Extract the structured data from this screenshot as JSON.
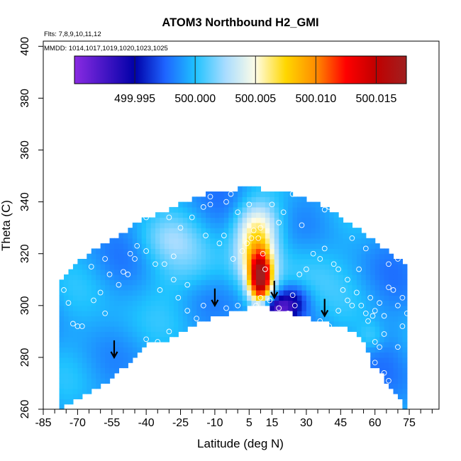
{
  "chart_data": {
    "type": "heatmap",
    "title": "ATOM3 Northbound H2_GMI",
    "annotations": {
      "flights": "Flts: 7,8,9,10,11,12",
      "dates": "MMDD: 1014,1017,1019,1020,1023,1025"
    },
    "xlabel": "Latitude (deg N)",
    "ylabel": "Theta (C)",
    "xlim": [
      -85,
      88
    ],
    "ylim": [
      260,
      402
    ],
    "xticks_labeled": [
      -85,
      -70,
      -55,
      -40,
      -25,
      -10,
      5,
      15,
      30,
      45,
      60,
      75
    ],
    "xticks_minor": [
      -80,
      -75,
      -65,
      -60,
      -50,
      -45,
      -35,
      -30,
      -20,
      -15,
      -5,
      0,
      10,
      20,
      25,
      35,
      40,
      50,
      55,
      65,
      70,
      80,
      85
    ],
    "yticks": [
      260,
      280,
      300,
      320,
      340,
      360,
      380,
      400
    ],
    "colorbar": {
      "ticks": [
        499.995,
        500.0,
        500.005,
        500.01,
        500.015
      ],
      "tick_labels": [
        "499.995",
        "500.000",
        "500.005",
        "500.010",
        "500.015"
      ],
      "range": [
        499.99,
        500.0175
      ],
      "stops": [
        {
          "v": 499.99,
          "color": "#8a2be2"
        },
        {
          "v": 499.995,
          "color": "#0000a8"
        },
        {
          "v": 499.9975,
          "color": "#1e64ff"
        },
        {
          "v": 500.0,
          "color": "#1ec2ff"
        },
        {
          "v": 500.0025,
          "color": "#a8dcff"
        },
        {
          "v": 500.005,
          "color": "#fffde6"
        },
        {
          "v": 500.0075,
          "color": "#ffd700"
        },
        {
          "v": 500.01,
          "color": "#ff8c00"
        },
        {
          "v": 500.0125,
          "color": "#ff0000"
        },
        {
          "v": 500.015,
          "color": "#c00000"
        },
        {
          "v": 500.0175,
          "color": "#a02020"
        }
      ]
    },
    "field": {
      "base_value": 499.999,
      "lower_boundary": [
        [
          -77,
          260
        ],
        [
          -70,
          264
        ],
        [
          -55,
          272
        ],
        [
          -46,
          279
        ],
        [
          -40,
          285
        ],
        [
          -30,
          287
        ],
        [
          -20,
          292
        ],
        [
          -10,
          296
        ],
        [
          0,
          298
        ],
        [
          8,
          300
        ],
        [
          20,
          298
        ],
        [
          32,
          295
        ],
        [
          45,
          292
        ],
        [
          54,
          288
        ],
        [
          58,
          280
        ],
        [
          60,
          274
        ],
        [
          62,
          277
        ],
        [
          64,
          272
        ],
        [
          67,
          268
        ],
        [
          72,
          262
        ],
        [
          73,
          260
        ]
      ],
      "upper_boundary": [
        [
          -77,
          310
        ],
        [
          -70,
          317
        ],
        [
          -60,
          323
        ],
        [
          -50,
          328
        ],
        [
          -42,
          333
        ],
        [
          -30,
          337
        ],
        [
          -20,
          341
        ],
        [
          -10,
          344
        ],
        [
          0,
          345
        ],
        [
          10,
          345
        ],
        [
          20,
          344
        ],
        [
          30,
          341
        ],
        [
          40,
          337
        ],
        [
          50,
          331
        ],
        [
          60,
          325
        ],
        [
          70,
          318
        ],
        [
          75,
          313
        ],
        [
          79,
          308
        ],
        [
          82,
          302
        ],
        [
          83,
          296
        ],
        [
          83,
          281
        ]
      ],
      "features": [
        {
          "lat": 10,
          "theta": 310,
          "sx": 3.5,
          "sy": 7,
          "amp": 0.0155
        },
        {
          "lat": 8,
          "theta": 322,
          "sx": 6,
          "sy": 9,
          "amp": 0.0065
        },
        {
          "lat": 9,
          "theta": 333,
          "sx": 7,
          "sy": 6,
          "amp": 0.003
        },
        {
          "lat": 17,
          "theta": 299,
          "sx": 6,
          "sy": 3.5,
          "amp": -0.0065
        },
        {
          "lat": 24,
          "theta": 303,
          "sx": 5,
          "sy": 4,
          "amp": -0.003
        },
        {
          "lat": -20,
          "theta": 315,
          "sx": 12,
          "sy": 8,
          "amp": 0.0022
        },
        {
          "lat": -30,
          "theta": 326,
          "sx": 10,
          "sy": 6,
          "amp": 0.0018
        },
        {
          "lat": 32,
          "theta": 315,
          "sx": 10,
          "sy": 10,
          "amp": 0.0018
        },
        {
          "lat": 58,
          "theta": 288,
          "sx": 4,
          "sy": 4,
          "amp": 0.0015
        },
        {
          "lat": -55,
          "theta": 290,
          "sx": 12,
          "sy": 10,
          "amp": 0.0008
        }
      ]
    },
    "observations": [
      [
        -63,
        302
      ],
      [
        -60,
        305
      ],
      [
        -52,
        308
      ],
      [
        -47,
        320
      ],
      [
        -44,
        323
      ],
      [
        -40,
        321
      ],
      [
        -36,
        316
      ],
      [
        -28,
        310
      ],
      [
        -26,
        303
      ],
      [
        -22,
        298
      ],
      [
        -18,
        295
      ],
      [
        -15,
        300
      ],
      [
        -74,
        301
      ],
      [
        -76,
        306
      ],
      [
        -72,
        293
      ],
      [
        -70,
        292
      ],
      [
        -68,
        292
      ],
      [
        -58,
        297
      ],
      [
        -48,
        312
      ],
      [
        -50,
        313
      ],
      [
        -45,
        318
      ],
      [
        -34,
        306
      ],
      [
        -22,
        308
      ],
      [
        -14,
        327
      ],
      [
        -8,
        324
      ],
      [
        -6,
        327
      ],
      [
        -2,
        318
      ],
      [
        2,
        321
      ],
      [
        4,
        324
      ],
      [
        6,
        326
      ],
      [
        7,
        329
      ],
      [
        9,
        326
      ],
      [
        10,
        330
      ],
      [
        11,
        320
      ],
      [
        12,
        314
      ],
      [
        8,
        300
      ],
      [
        10,
        303
      ],
      [
        12,
        298
      ],
      [
        14,
        302
      ],
      [
        16,
        296
      ],
      [
        18,
        299
      ],
      [
        22,
        297
      ],
      [
        25,
        300
      ],
      [
        27,
        312
      ],
      [
        30,
        314
      ],
      [
        33,
        320
      ],
      [
        36,
        318
      ],
      [
        24,
        304
      ],
      [
        28,
        331
      ],
      [
        20,
        336
      ],
      [
        15,
        339
      ],
      [
        5,
        339
      ],
      [
        -5,
        340
      ],
      [
        -15,
        338
      ],
      [
        -20,
        334
      ],
      [
        -25,
        330
      ],
      [
        -30,
        334
      ],
      [
        -12,
        342
      ],
      [
        -3,
        343
      ],
      [
        38,
        322
      ],
      [
        42,
        316
      ],
      [
        44,
        314
      ],
      [
        46,
        306
      ],
      [
        48,
        302
      ],
      [
        50,
        300
      ],
      [
        52,
        305
      ],
      [
        54,
        300
      ],
      [
        56,
        297
      ],
      [
        58,
        303
      ],
      [
        60,
        298
      ],
      [
        62,
        301
      ],
      [
        64,
        296
      ],
      [
        66,
        307
      ],
      [
        68,
        306
      ],
      [
        70,
        300
      ],
      [
        72,
        303
      ],
      [
        74,
        297
      ],
      [
        76,
        293
      ],
      [
        78,
        292
      ],
      [
        62,
        284
      ],
      [
        60,
        286
      ],
      [
        64,
        289
      ],
      [
        70,
        284
      ],
      [
        72,
        292
      ],
      [
        57,
        294
      ],
      [
        59,
        296
      ],
      [
        40,
        292
      ],
      [
        36,
        294
      ],
      [
        44,
        298
      ],
      [
        48,
        310
      ],
      [
        53,
        314
      ],
      [
        66,
        316
      ],
      [
        70,
        318
      ],
      [
        56,
        322
      ],
      [
        50,
        326
      ],
      [
        -40,
        287
      ],
      [
        -35,
        286
      ],
      [
        -30,
        290
      ],
      [
        -10,
        292
      ],
      [
        -5,
        299
      ],
      [
        0,
        300
      ],
      [
        -32,
        316
      ],
      [
        -28,
        319
      ],
      [
        -56,
        312
      ],
      [
        -58,
        318
      ],
      [
        -64,
        315
      ],
      [
        60,
        278
      ],
      [
        64,
        274
      ],
      [
        66,
        271
      ],
      [
        38,
        337
      ],
      [
        40,
        338
      ],
      [
        24,
        343
      ],
      [
        -40,
        334
      ],
      [
        -45,
        336
      ],
      [
        -12,
        339
      ],
      [
        0,
        336
      ],
      [
        18,
        332
      ]
    ],
    "arrows": [
      [
        -54,
        280
      ],
      [
        -10,
        300
      ],
      [
        16,
        303
      ],
      [
        38,
        296
      ]
    ]
  }
}
